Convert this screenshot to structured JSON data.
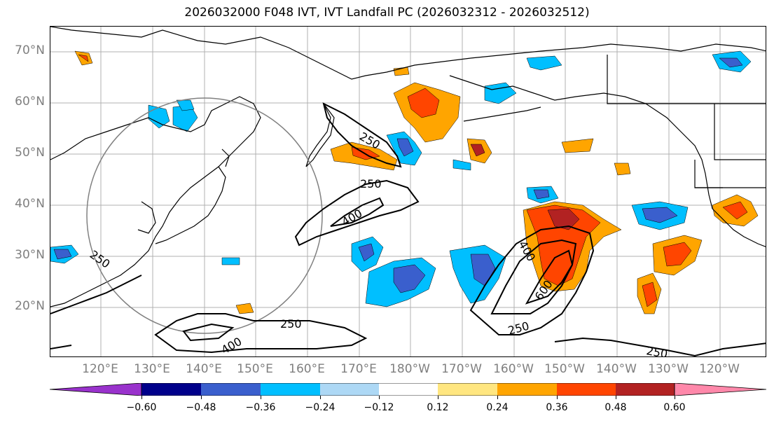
{
  "title": "2026032000 F048 IVT, IVT Landfall PC (2026032312 - 2026032512)",
  "map": {
    "lat_labels": [
      "70°N",
      "60°N",
      "50°N",
      "40°N",
      "30°N",
      "20°N"
    ],
    "lon_labels": [
      "120°E",
      "130°E",
      "140°E",
      "150°E",
      "160°E",
      "170°E",
      "180°W",
      "170°W",
      "160°W",
      "150°W",
      "140°W",
      "130°W",
      "120°W"
    ],
    "contour_labels": [
      "250",
      "250",
      "400",
      "250",
      "250",
      "400",
      "400",
      "600",
      "250",
      "250"
    ],
    "colors": {
      "coastline": "#000000",
      "gridline": "#b0b0b0",
      "contour": "#000000",
      "circle": "#808080"
    }
  },
  "colorbar": {
    "ticks": [
      "−0.60",
      "−0.48",
      "−0.36",
      "−0.24",
      "−0.12",
      "0.12",
      "0.24",
      "0.36",
      "0.48",
      "0.60"
    ],
    "colors": [
      "#9932cc",
      "#00008b",
      "#3a5fcd",
      "#00bfff",
      "#add8f5",
      "#ffffff",
      "#ffe680",
      "#ffa500",
      "#ff4500",
      "#b22222",
      "#ff88aa"
    ]
  }
}
